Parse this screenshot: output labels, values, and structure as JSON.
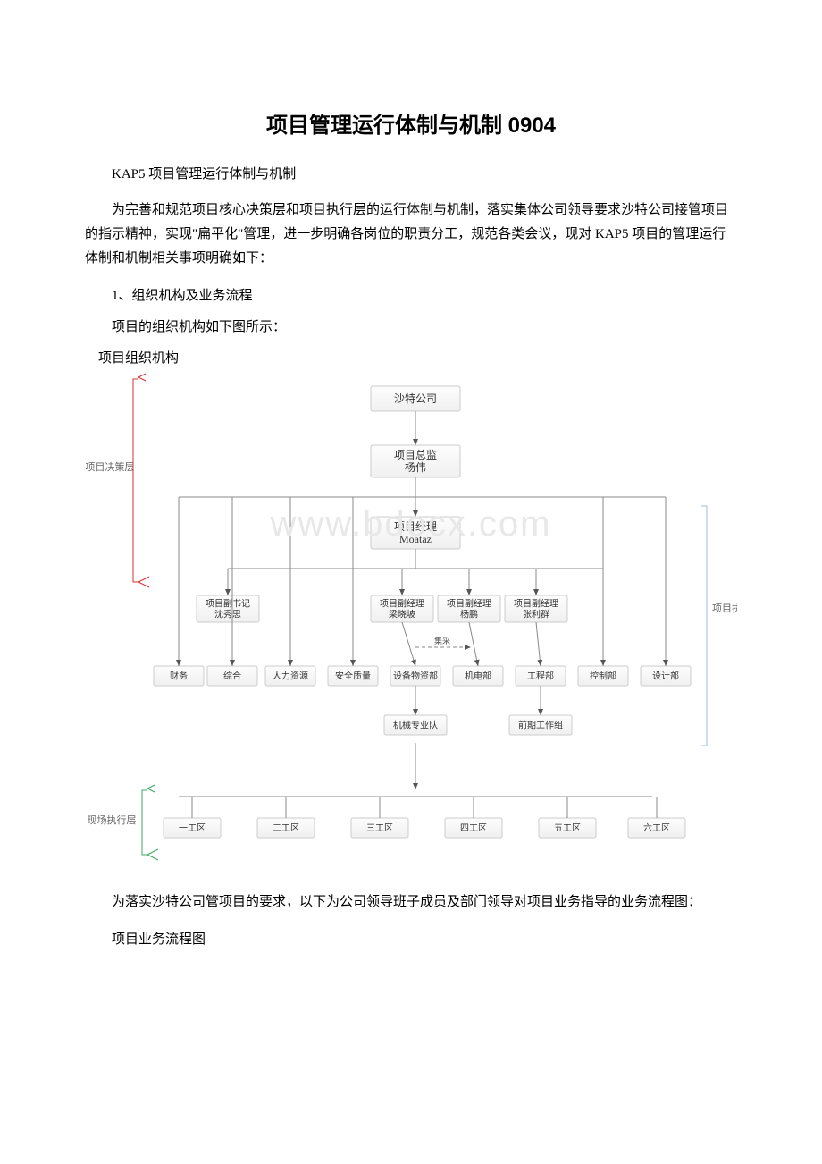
{
  "title": "项目管理运行体制与机制 0904",
  "subtitle": "KAP5 项目管理运行体制与机制",
  "intro": "为完善和规范项目核心决策层和项目执行层的运行体制与机制，落实集体公司领导要求沙特公司接管项目的指示精神，实现\"扁平化\"管理，进一步明确各岗位的职责分工，规范各类会议，现对 KAP5 项目的管理运行体制和机制相关事项明确如下：",
  "sec1": "1、组织机构及业务流程",
  "sec1_line": "项目的组织机构如下图所示：",
  "fig1_title": "项目组织机构",
  "para2": "为落实沙特公司管项目的要求，以下为公司领导班子成员及部门领导对项目业务指导的业务流程图：",
  "fig2_title": "项目业务流程图",
  "watermark": "www.bdocx.com",
  "chart": {
    "layer_labels": {
      "decision": "项目决策层",
      "execution": "项目执行层",
      "site": "现场执行层"
    },
    "nodes": {
      "company": {
        "l1": "沙特公司"
      },
      "director": {
        "l1": "项目总监",
        "l2": "杨伟"
      },
      "pm": {
        "l1": "项目经理",
        "l2": "Moataz"
      },
      "dep_sec": {
        "l1": "项目副书记",
        "l2": "沈秀思"
      },
      "dpm1": {
        "l1": "项目副经理",
        "l2": "梁晓坡"
      },
      "dpm2": {
        "l1": "项目副经理",
        "l2": "杨鹏"
      },
      "dpm3": {
        "l1": "项目副经理",
        "l2": "张利群"
      },
      "d_fin": "财务",
      "d_gen": "综合",
      "d_hr": "人力资源",
      "d_sq": "安全质量",
      "d_mat": "设备物资部",
      "d_me": "机电部",
      "d_eng": "工程部",
      "d_ctrl": "控制部",
      "d_des": "设计部",
      "team_mech": "机械专业队",
      "team_pre": "前期工作组",
      "edge_label": "集采",
      "zones": {
        "z1": "一工区",
        "z2": "二工区",
        "z3": "三工区",
        "z4": "四工区",
        "z5": "五工区",
        "z6": "六工区"
      }
    },
    "style": {
      "node_border": "#cccccc",
      "node_bg_top": "#fdfdfd",
      "node_bg_bottom": "#f0f0f0",
      "line_color": "#888888",
      "arrow_color": "#555555",
      "bracket_red": "#d93030",
      "bracket_green": "#3fa860",
      "bracket_blue": "#9bb8e0",
      "label_color": "#666666",
      "label_fontsize": 11,
      "node_fontsize": 10,
      "node_big_fontsize": 12
    }
  }
}
